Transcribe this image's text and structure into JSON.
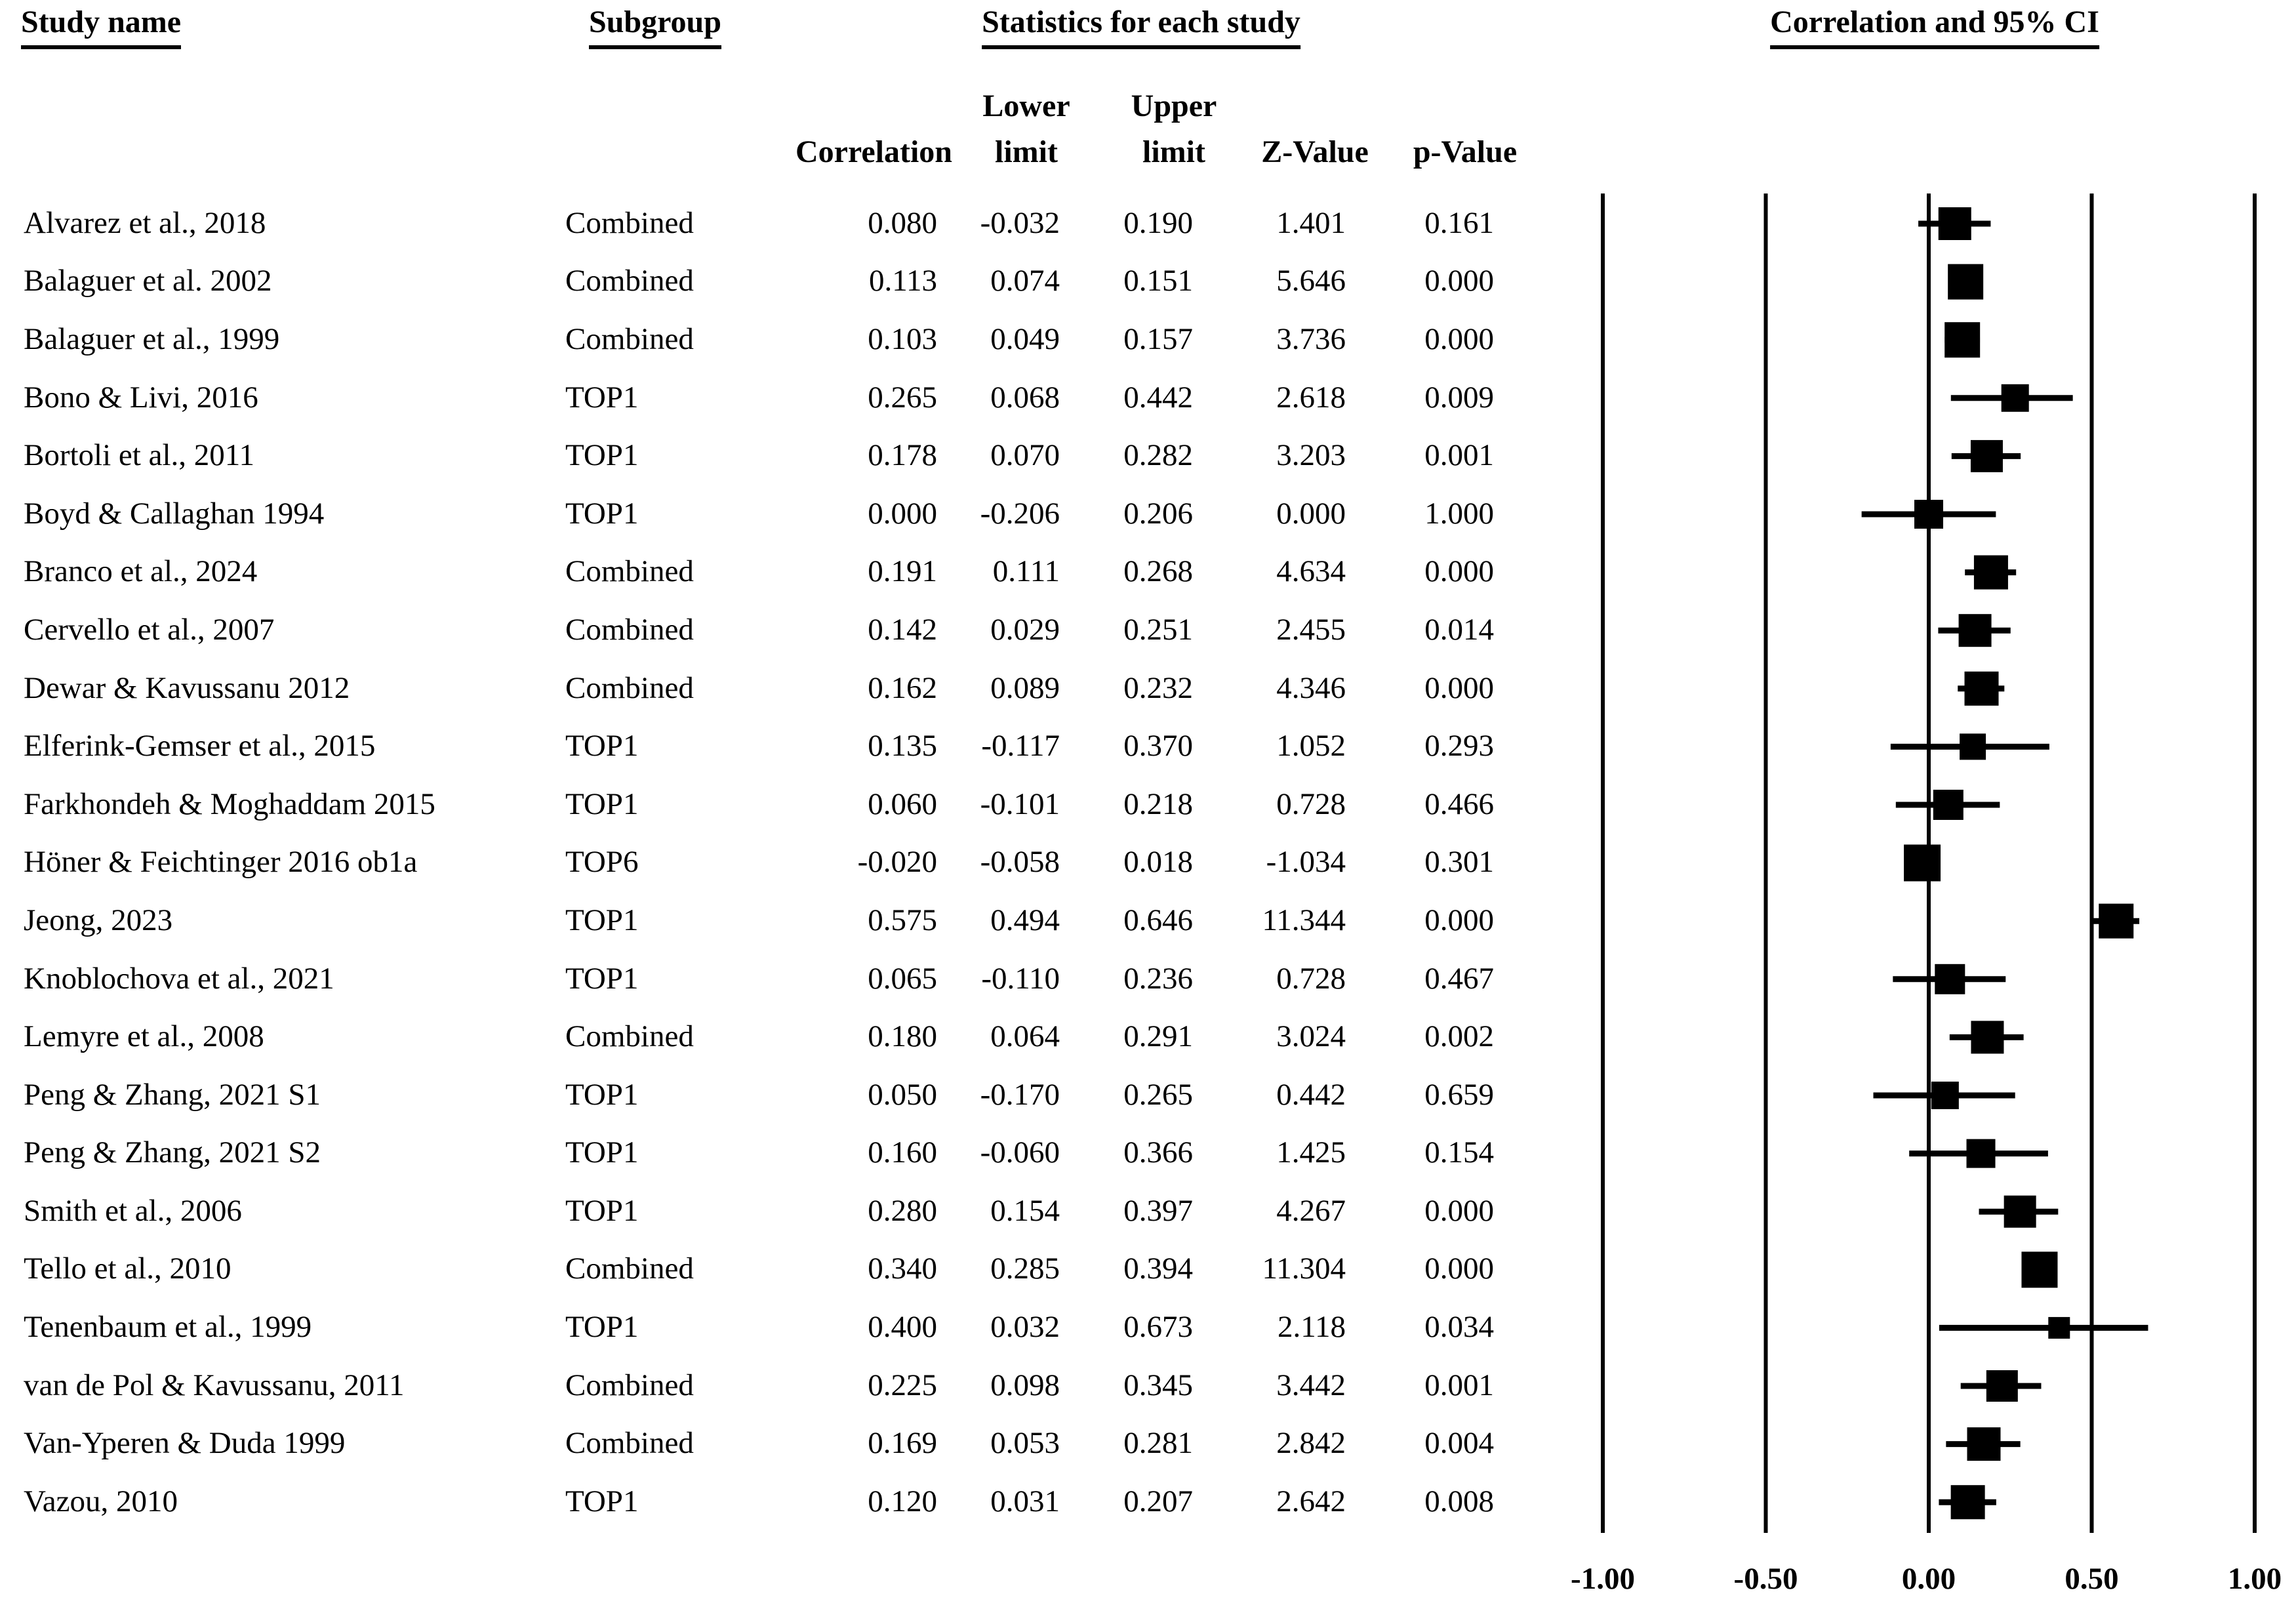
{
  "headers": {
    "study_name": "Study name",
    "subgroup": "Subgroup",
    "statistics": "Statistics for each study",
    "plot_title": "Correlation and 95% CI",
    "sub": {
      "correlation": "Correlation",
      "lower_line1": "Lower",
      "lower_line2": "limit",
      "upper_line1": "Upper",
      "upper_line2": "limit",
      "z": "Z-Value",
      "p": "p-Value"
    }
  },
  "chart_data": {
    "type": "forest",
    "title": "Correlation and 95% CI",
    "effect_measure": "Correlation",
    "x_axis": {
      "range": [
        -1,
        1
      ],
      "tick_values": [
        -1,
        -0.5,
        0,
        0.5,
        1
      ],
      "tick_labels": [
        "-1.00",
        "-0.50",
        "0.00",
        "0.50",
        "1.00"
      ],
      "gridlines": true
    },
    "studies": [
      {
        "name": "Alvarez et al., 2018",
        "subgroup": "Combined",
        "correlation": "0.080",
        "lower": "-0.032",
        "upper": "0.190",
        "z": "1.401",
        "p": "0.161",
        "square": 50
      },
      {
        "name": "Balaguer et al. 2002",
        "subgroup": "Combined",
        "correlation": "0.113",
        "lower": "0.074",
        "upper": "0.151",
        "z": "5.646",
        "p": "0.000",
        "square": 54
      },
      {
        "name": "Balaguer et al., 1999",
        "subgroup": "Combined",
        "correlation": "0.103",
        "lower": "0.049",
        "upper": "0.157",
        "z": "3.736",
        "p": "0.000",
        "square": 54
      },
      {
        "name": "Bono & Livi, 2016",
        "subgroup": "TOP1",
        "correlation": "0.265",
        "lower": "0.068",
        "upper": "0.442",
        "z": "2.618",
        "p": "0.009",
        "square": 42
      },
      {
        "name": "Bortoli et al., 2011",
        "subgroup": "TOP1",
        "correlation": "0.178",
        "lower": "0.070",
        "upper": "0.282",
        "z": "3.203",
        "p": "0.001",
        "square": 49
      },
      {
        "name": "Boyd & Callaghan 1994",
        "subgroup": "TOP1",
        "correlation": "0.000",
        "lower": "-0.206",
        "upper": "0.206",
        "z": "0.000",
        "p": "1.000",
        "square": 44
      },
      {
        "name": "Branco et al., 2024",
        "subgroup": "Combined",
        "correlation": "0.191",
        "lower": "0.111",
        "upper": "0.268",
        "z": "4.634",
        "p": "0.000",
        "square": 52
      },
      {
        "name": "Cervello et al., 2007",
        "subgroup": "Combined",
        "correlation": "0.142",
        "lower": "0.029",
        "upper": "0.251",
        "z": "2.455",
        "p": "0.014",
        "square": 50
      },
      {
        "name": "Dewar & Kavussanu 2012",
        "subgroup": "Combined",
        "correlation": "0.162",
        "lower": "0.089",
        "upper": "0.232",
        "z": "4.346",
        "p": "0.000",
        "square": 52
      },
      {
        "name": "Elferink-Gemser et al., 2015",
        "subgroup": "TOP1",
        "correlation": "0.135",
        "lower": "-0.117",
        "upper": "0.370",
        "z": "1.052",
        "p": "0.293",
        "square": 40
      },
      {
        "name": "Farkhondeh & Moghaddam 2015",
        "subgroup": "TOP1",
        "correlation": "0.060",
        "lower": "-0.101",
        "upper": "0.218",
        "z": "0.728",
        "p": "0.466",
        "square": 46
      },
      {
        "name": "Höner & Feichtinger 2016 ob1a",
        "subgroup": "TOP6",
        "correlation": "-0.020",
        "lower": "-0.058",
        "upper": "0.018",
        "z": "-1.034",
        "p": "0.301",
        "square": 56
      },
      {
        "name": "Jeong, 2023",
        "subgroup": "TOP1",
        "correlation": "0.575",
        "lower": "0.494",
        "upper": "0.646",
        "z": "11.344",
        "p": "0.000",
        "square": 53
      },
      {
        "name": "Knoblochova et al., 2021",
        "subgroup": "TOP1",
        "correlation": "0.065",
        "lower": "-0.110",
        "upper": "0.236",
        "z": "0.728",
        "p": "0.467",
        "square": 46
      },
      {
        "name": "Lemyre et al., 2008",
        "subgroup": "Combined",
        "correlation": "0.180",
        "lower": "0.064",
        "upper": "0.291",
        "z": "3.024",
        "p": "0.002",
        "square": 50
      },
      {
        "name": "Peng & Zhang, 2021 S1",
        "subgroup": "TOP1",
        "correlation": "0.050",
        "lower": "-0.170",
        "upper": "0.265",
        "z": "0.442",
        "p": "0.659",
        "square": 42
      },
      {
        "name": "Peng & Zhang, 2021 S2",
        "subgroup": "TOP1",
        "correlation": "0.160",
        "lower": "-0.060",
        "upper": "0.366",
        "z": "1.425",
        "p": "0.154",
        "square": 44
      },
      {
        "name": "Smith et al., 2006",
        "subgroup": "TOP1",
        "correlation": "0.280",
        "lower": "0.154",
        "upper": "0.397",
        "z": "4.267",
        "p": "0.000",
        "square": 49
      },
      {
        "name": "Tello et al., 2010",
        "subgroup": "Combined",
        "correlation": "0.340",
        "lower": "0.285",
        "upper": "0.394",
        "z": "11.304",
        "p": "0.000",
        "square": 55
      },
      {
        "name": "Tenenbaum et al., 1999",
        "subgroup": "TOP1",
        "correlation": "0.400",
        "lower": "0.032",
        "upper": "0.673",
        "z": "2.118",
        "p": "0.034",
        "square": 33
      },
      {
        "name": "van de Pol & Kavussanu, 2011",
        "subgroup": "Combined",
        "correlation": "0.225",
        "lower": "0.098",
        "upper": "0.345",
        "z": "3.442",
        "p": "0.001",
        "square": 48
      },
      {
        "name": "Van-Yperen & Duda 1999",
        "subgroup": "Combined",
        "correlation": "0.169",
        "lower": "0.053",
        "upper": "0.281",
        "z": "2.842",
        "p": "0.004",
        "square": 51
      },
      {
        "name": "Vazou, 2010",
        "subgroup": "TOP1",
        "correlation": "0.120",
        "lower": "0.031",
        "upper": "0.207",
        "z": "2.642",
        "p": "0.008",
        "square": 52
      }
    ],
    "colors": {
      "marker": "#000000",
      "line": "#000000",
      "text": "#000000",
      "background": "#ffffff"
    }
  }
}
